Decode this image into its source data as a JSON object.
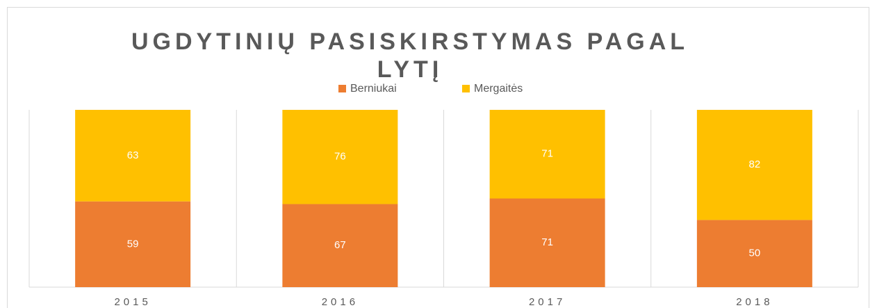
{
  "chart_data": {
    "type": "bar",
    "stacking": "percent",
    "title": "UGDYTINIŲ PASISKIRSTYMAS PAGAL LYTĮ",
    "categories": [
      "2015",
      "2016",
      "2017",
      "2018"
    ],
    "series": [
      {
        "name": "Berniukai",
        "color": "#ED7D31",
        "values": [
          59,
          67,
          71,
          50
        ]
      },
      {
        "name": "Mergaitės",
        "color": "#FFC000",
        "values": [
          63,
          76,
          71,
          82
        ]
      }
    ],
    "legend": "top"
  }
}
